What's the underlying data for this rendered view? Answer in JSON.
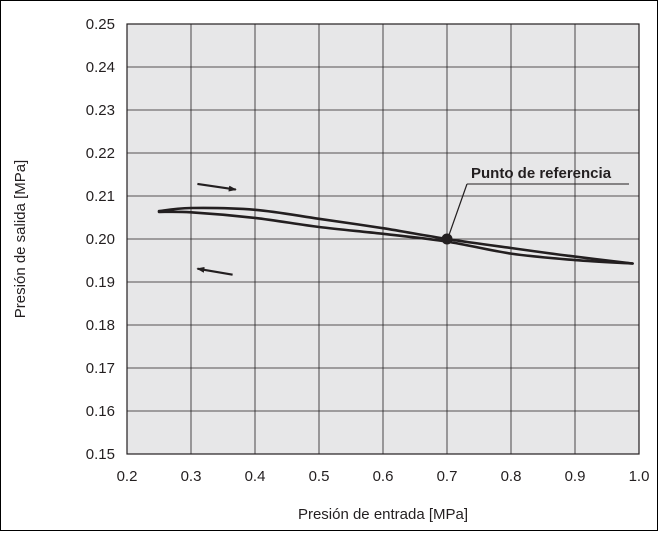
{
  "chart_data": {
    "type": "line",
    "xlabel": "Presión de entrada [MPa]",
    "ylabel": "Presión de salida [MPa]",
    "xlim": [
      0.2,
      1.0
    ],
    "ylim": [
      0.15,
      0.25
    ],
    "x_ticks": [
      "0.2",
      "0.3",
      "0.4",
      "0.5",
      "0.6",
      "0.7",
      "0.8",
      "0.9",
      "1.0"
    ],
    "y_ticks": [
      "0.15",
      "0.16",
      "0.17",
      "0.18",
      "0.19",
      "0.20",
      "0.21",
      "0.22",
      "0.23",
      "0.24",
      "0.25"
    ],
    "grid": true,
    "plot_background": "#e7e7e8",
    "line_color": "#231f20",
    "series": [
      {
        "direction": "increasing",
        "x": [
          0.25,
          0.3,
          0.4,
          0.5,
          0.6,
          0.7,
          0.8,
          0.9,
          0.99
        ],
        "y": [
          0.2065,
          0.2072,
          0.2068,
          0.2047,
          0.2025,
          0.2,
          0.1979,
          0.1959,
          0.1943
        ]
      },
      {
        "direction": "decreasing",
        "x": [
          0.25,
          0.3,
          0.4,
          0.5,
          0.6,
          0.7,
          0.8,
          0.9,
          0.99
        ],
        "y": [
          0.2063,
          0.2062,
          0.2049,
          0.2028,
          0.2012,
          0.1994,
          0.1966,
          0.1951,
          0.1943
        ]
      }
    ],
    "reference_point": {
      "x": 0.7,
      "y": 0.2,
      "label": "Punto de referencia"
    },
    "direction_arrows": [
      {
        "direction": "increasing",
        "x": [
          0.31,
          0.37
        ],
        "y": [
          0.2128,
          0.2115
        ]
      },
      {
        "direction": "decreasing",
        "x": [
          0.365,
          0.31
        ],
        "y": [
          0.1917,
          0.1931
        ]
      }
    ]
  }
}
